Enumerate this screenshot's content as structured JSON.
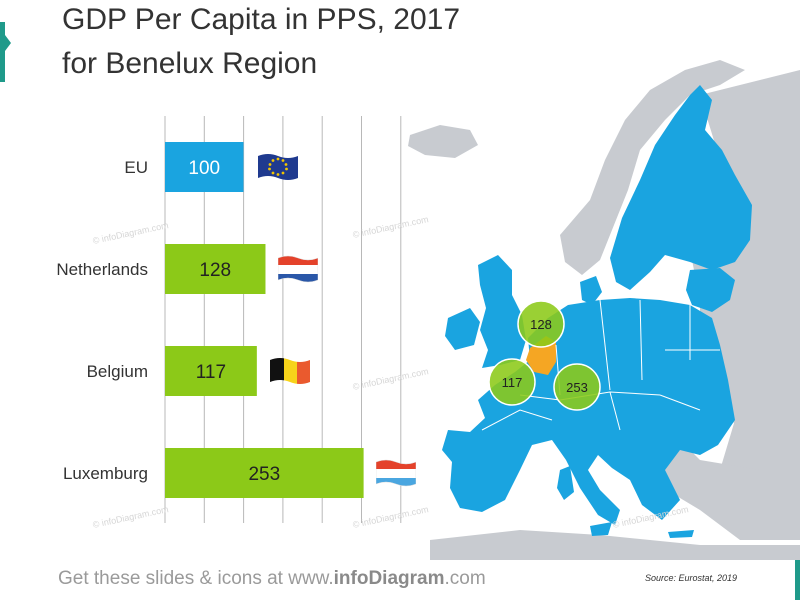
{
  "title": {
    "line1": "GDP Per Capita in PPS, 2017",
    "line2": "for Benelux Region"
  },
  "chart_data": {
    "type": "bar",
    "orientation": "horizontal",
    "categories": [
      "EU",
      "Netherlands",
      "Belgium",
      "Luxemburg"
    ],
    "values": [
      100,
      128,
      117,
      253
    ],
    "xlim": [
      0,
      300
    ],
    "grid": true,
    "title": "GDP Per Capita in PPS, 2017 for Benelux Region",
    "xlabel": "",
    "ylabel": ""
  },
  "colors": {
    "eu_bar": "#1aa4e0",
    "country_bar": "#8cc918",
    "map_eu": "#1aa4e0",
    "map_benelux": "#f5a623",
    "map_other": "#c8cbd0",
    "bubble": "#8cc918"
  },
  "map": {
    "bubbles": [
      {
        "country": "Netherlands",
        "value": "128"
      },
      {
        "country": "Belgium",
        "value": "117"
      },
      {
        "country": "Luxemburg",
        "value": "253"
      }
    ]
  },
  "flags": [
    "eu-flag",
    "netherlands-flag",
    "belgium-flag",
    "luxembourg-flag"
  ],
  "footer": {
    "prefix": "Get these slides & icons at www.",
    "brand": "infoDiagram",
    "suffix": ".com"
  },
  "source": "Source: Eurostat, 2019",
  "watermark": "© infoDiagram.com"
}
